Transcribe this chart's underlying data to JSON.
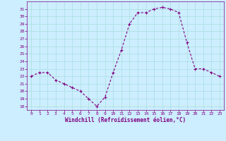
{
  "x": [
    0,
    1,
    2,
    3,
    4,
    5,
    6,
    7,
    8,
    9,
    10,
    11,
    12,
    13,
    14,
    15,
    16,
    17,
    18,
    19,
    20,
    21,
    22,
    23
  ],
  "y": [
    22,
    22.5,
    22.5,
    21.5,
    21,
    20.5,
    20,
    19,
    18,
    19.2,
    22.5,
    25.5,
    29,
    30.5,
    30.5,
    31,
    31.2,
    31,
    30.5,
    26.5,
    23,
    23,
    22.5,
    22
  ],
  "line_color": "#800080",
  "marker": "+",
  "markersize": 3,
  "linewidth": 0.8,
  "bg_color": "#cceeff",
  "grid_color": "#aadddd",
  "xlabel": "Windchill (Refroidissement éolien,°C)",
  "xlabel_color": "#800080",
  "tick_color": "#800080",
  "ylim": [
    17.5,
    32
  ],
  "xlim": [
    -0.5,
    23.5
  ],
  "yticks": [
    18,
    19,
    20,
    21,
    22,
    23,
    24,
    25,
    26,
    27,
    28,
    29,
    30,
    31
  ],
  "xticks": [
    0,
    1,
    2,
    3,
    4,
    5,
    6,
    7,
    8,
    9,
    10,
    11,
    12,
    13,
    14,
    15,
    16,
    17,
    18,
    19,
    20,
    21,
    22,
    23
  ]
}
